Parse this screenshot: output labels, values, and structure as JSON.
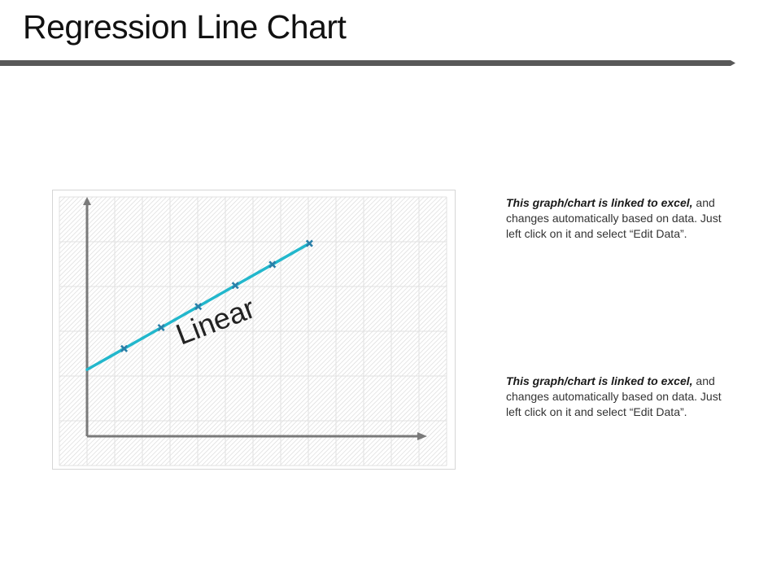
{
  "title": "Regression Line Chart",
  "colors": {
    "series": "#22b7cc",
    "marker": "#2a7fa8",
    "axis": "#7a7a7a",
    "rule": "#595959",
    "grid": "#e2e2e2"
  },
  "chart_data": {
    "type": "line",
    "title": "",
    "xlabel": "",
    "ylabel": "",
    "xlim": [
      0,
      9
    ],
    "ylim": [
      0,
      13
    ],
    "grid": true,
    "legend": "none",
    "series": [
      {
        "x": [
          0,
          1,
          2,
          3,
          4,
          5,
          6
        ],
        "values": [
          3.8,
          5.0,
          6.2,
          7.4,
          8.6,
          9.8,
          11.0
        ]
      }
    ],
    "markers_from_index": 1,
    "annotations": [
      {
        "text": "Linear",
        "x": 3.5,
        "y": 6.5
      }
    ]
  },
  "notes": [
    {
      "lead": "This graph/chart  is linked to excel,",
      "body": "and changes automatically based on data. Just left click on it and select “Edit Data”."
    },
    {
      "lead": "This graph/chart  is linked to excel,",
      "body": "and changes automatically based on data. Just left click on it and select “Edit Data”."
    }
  ]
}
